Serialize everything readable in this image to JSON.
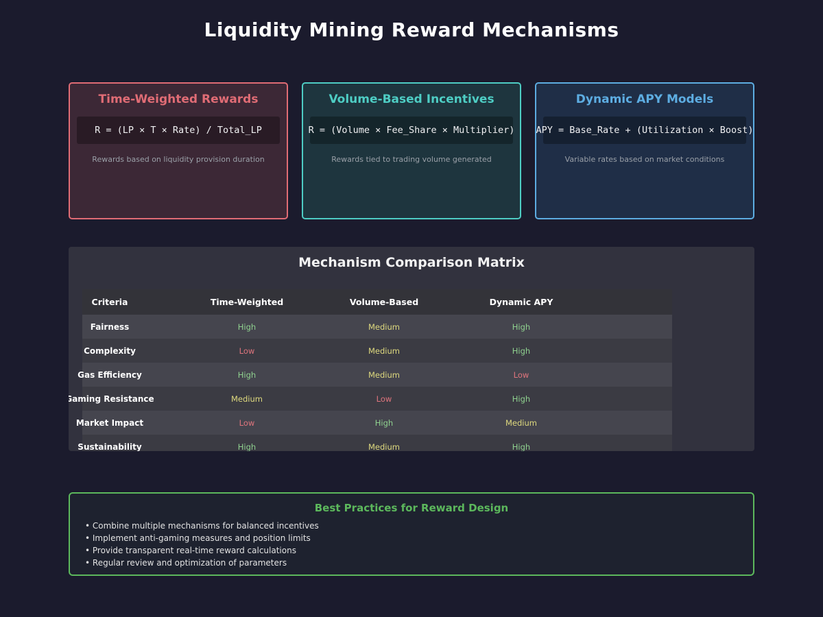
{
  "page": {
    "title": "Liquidity Mining Reward Mechanisms"
  },
  "cards": [
    {
      "title": "Time-Weighted Rewards",
      "formula": "R = (LP × T × Rate) / Total_LP",
      "description": "Rewards based on liquidity provision duration",
      "accent": "#e06c75",
      "bg": "#3c2836"
    },
    {
      "title": "Volume-Based Incentives",
      "formula": "R = (Volume × Fee_Share × Multiplier)",
      "description": "Rewards tied to trading volume generated",
      "accent": "#4ecdc4",
      "bg": "#1e353e"
    },
    {
      "title": "Dynamic APY Models",
      "formula": "APY = Base_Rate + (Utilization × Boost)",
      "description": "Variable rates based on market conditions",
      "accent": "#5dade2",
      "bg": "#1f2e47"
    }
  ],
  "comparison": {
    "title": "Mechanism Comparison Matrix",
    "columns": [
      "Criteria",
      "Time-Weighted",
      "Volume-Based",
      "Dynamic APY"
    ],
    "rows": [
      {
        "criteria": "Fairness",
        "values": [
          "High",
          "Medium",
          "High"
        ]
      },
      {
        "criteria": "Complexity",
        "values": [
          "Low",
          "Medium",
          "High"
        ]
      },
      {
        "criteria": "Gas Efficiency",
        "values": [
          "High",
          "Medium",
          "Low"
        ]
      },
      {
        "criteria": "Gaming Resistance",
        "values": [
          "Medium",
          "Low",
          "High"
        ]
      },
      {
        "criteria": "Market Impact",
        "values": [
          "Low",
          "High",
          "Medium"
        ]
      },
      {
        "criteria": "Sustainability",
        "values": [
          "High",
          "Medium",
          "High"
        ]
      }
    ],
    "value_colors": {
      "High": "#8fd18f",
      "Medium": "#ded97e",
      "Low": "#e0757d"
    }
  },
  "best_practices": {
    "title": "Best Practices for Reward Design",
    "accent": "#5cb85c",
    "items": [
      "• Combine multiple mechanisms for balanced incentives",
      "• Implement anti-gaming measures and position limits",
      "• Provide transparent real-time reward calculations",
      "• Regular review and optimization of parameters"
    ]
  }
}
